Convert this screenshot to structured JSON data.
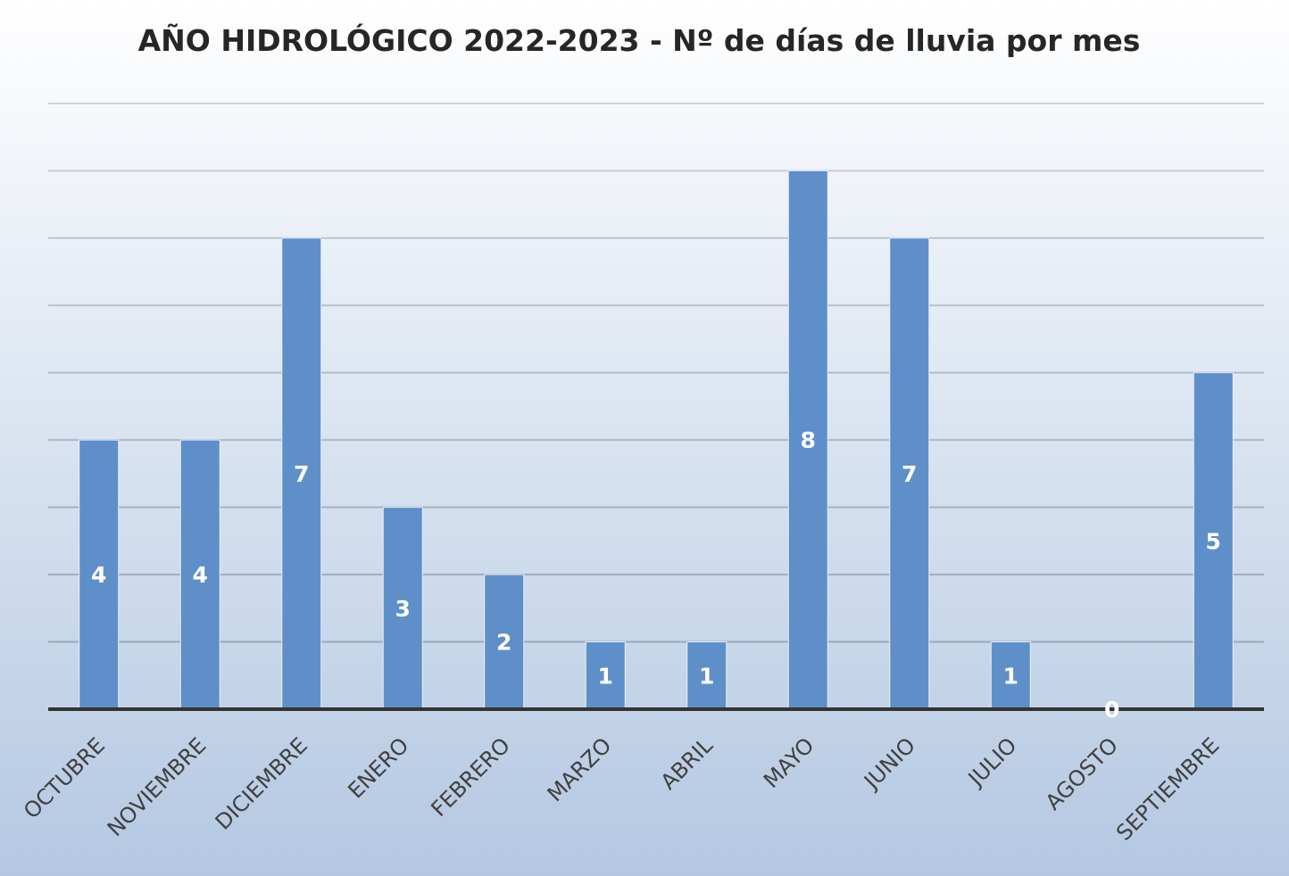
{
  "chart_data": {
    "type": "bar",
    "title": "AÑO HIDROLÓGICO 2022-2023 - Nº de días de lluvia por mes",
    "categories": [
      "OCTUBRE",
      "NOVIEMBRE",
      "DICIEMBRE",
      "ENERO",
      "FEBRERO",
      "MARZO",
      "ABRIL",
      "MAYO",
      "JUNIO",
      "JULIO",
      "AGOSTO",
      "SEPTIEMBRE"
    ],
    "values": [
      4,
      4,
      7,
      3,
      2,
      1,
      1,
      8,
      7,
      1,
      0,
      5
    ],
    "color": "#5f8fc9",
    "ylim": [
      0,
      9
    ],
    "yticks": [
      0,
      1,
      2,
      3,
      4,
      5,
      6,
      7,
      8,
      9
    ],
    "grid": true
  }
}
